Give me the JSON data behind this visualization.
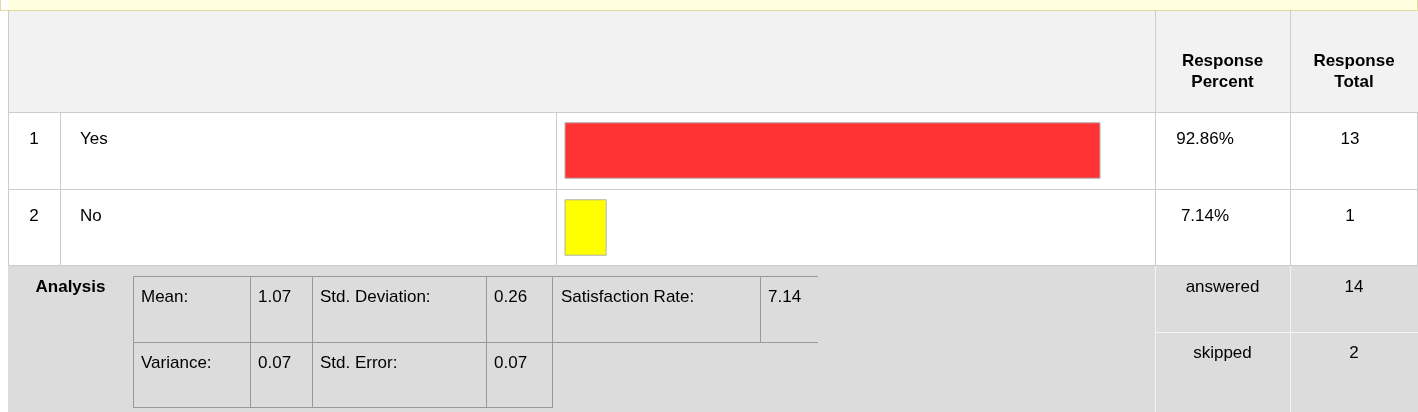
{
  "chart_data": {
    "type": "bar",
    "orientation": "horizontal",
    "categories": [
      "Yes",
      "No"
    ],
    "values": [
      92.86,
      7.14
    ],
    "colors": [
      "#ff3333",
      "#ffff00"
    ],
    "value_labels": [
      "92.86%",
      "7.14%"
    ],
    "annotations": [
      "Response Percent",
      "Response Total",
      "Analysis",
      "Mean:",
      "1.07",
      "Std. Deviation:",
      "0.26",
      "Satisfaction Rate:",
      "7.14",
      "Variance:",
      "0.07",
      "Std. Error:",
      "0.07",
      "answered",
      "14",
      "skipped",
      "2",
      "1",
      "13",
      "2",
      "1"
    ]
  }
}
